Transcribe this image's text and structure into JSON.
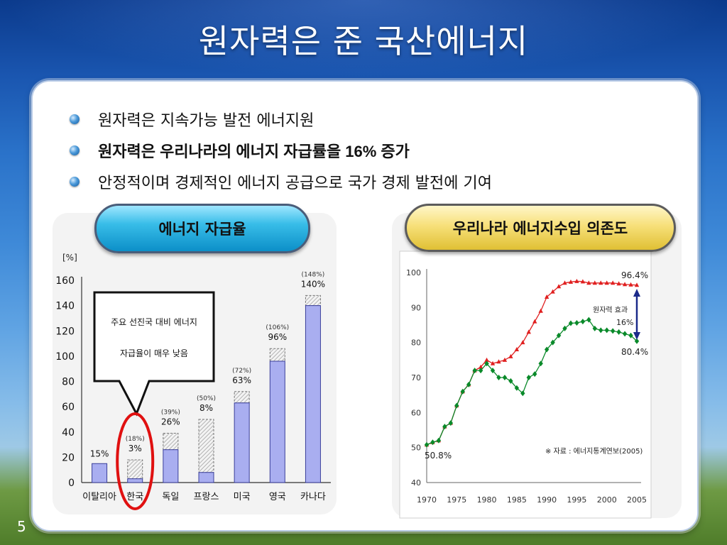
{
  "slide": {
    "title": "원자력은 준 국산에너지",
    "number": "5",
    "bullets": [
      {
        "text": "원자력은 지속가능 발전 에너지원",
        "bold": false
      },
      {
        "text": "원자력은 우리나라의 에너지 자급률을 16% 증가",
        "bold": true
      },
      {
        "text": "안정적이며 경제적인 에너지 공급으로 국가 경제 발전에 기여",
        "bold": false
      }
    ],
    "left_pill": "에너지 자급율",
    "right_pill": "우리나라 에너지수입 의존도"
  },
  "colors": {
    "title_bg_top": "#0b3a8c",
    "bar_fill": "#a9aef0",
    "bar_stroke": "#3a3f9a",
    "highlight_circle": "#e01010",
    "line_red": "#e02020",
    "line_green": "#0a8a2a"
  },
  "chart_data": [
    {
      "type": "bar",
      "unit_label": "[%]",
      "categories": [
        "이탈리아",
        "한국",
        "독일",
        "프랑스",
        "미국",
        "영국",
        "카나다"
      ],
      "values": [
        15,
        3,
        26,
        8,
        63,
        96,
        140
      ],
      "value_labels": [
        "15%",
        "3%",
        "26%",
        "8%",
        "63%",
        "96%",
        "140%"
      ],
      "totals_with_nuclear": [
        null,
        18,
        39,
        50,
        72,
        106,
        148
      ],
      "totals_labels": [
        "",
        "(18%)",
        "(39%)",
        "(50%)",
        "(72%)",
        "(106%)",
        "(148%)"
      ],
      "yticks": [
        0,
        20,
        40,
        60,
        80,
        100,
        120,
        140,
        160
      ],
      "ylim": [
        0,
        160
      ],
      "callout": [
        "주요 선진국 대비 에너지",
        "자급율이 매우 낮음"
      ],
      "highlight_category": "한국"
    },
    {
      "type": "line",
      "x_ticks": [
        1970,
        1975,
        1980,
        1985,
        1990,
        1995,
        2000,
        2005
      ],
      "y_ticks": [
        40,
        50,
        60,
        70,
        80,
        90,
        100
      ],
      "xlim": [
        1970,
        2005
      ],
      "ylim": [
        40,
        100
      ],
      "series": [
        {
          "marker": "triangle",
          "x": [
            1970,
            1971,
            1972,
            1973,
            1974,
            1975,
            1976,
            1977,
            1978,
            1979,
            1980,
            1981,
            1982,
            1983,
            1984,
            1985,
            1986,
            1987,
            1988,
            1989,
            1990,
            1991,
            1992,
            1993,
            1994,
            1995,
            1996,
            1997,
            1998,
            1999,
            2000,
            2001,
            2002,
            2003,
            2004,
            2005
          ],
          "values": [
            50.8,
            51.5,
            52,
            56,
            57,
            62,
            66,
            68,
            72,
            73,
            75,
            74,
            74.5,
            75,
            76,
            78,
            80,
            83,
            86,
            89,
            93,
            94.5,
            96,
            97,
            97.3,
            97.5,
            97.4,
            97,
            97,
            97,
            97,
            97,
            96.8,
            96.6,
            96.5,
            96.4
          ]
        },
        {
          "marker": "diamond",
          "x": [
            1970,
            1971,
            1972,
            1973,
            1974,
            1975,
            1976,
            1977,
            1978,
            1979,
            1980,
            1981,
            1982,
            1983,
            1984,
            1985,
            1986,
            1987,
            1988,
            1989,
            1990,
            1991,
            1992,
            1993,
            1994,
            1995,
            1996,
            1997,
            1998,
            1999,
            2000,
            2001,
            2002,
            2003,
            2004,
            2005
          ],
          "values": [
            50.8,
            51.5,
            52,
            56,
            57,
            62,
            66,
            68,
            72,
            72,
            74,
            72,
            70,
            70,
            69,
            67,
            65.5,
            70,
            71,
            74,
            78,
            80,
            82,
            84,
            85.5,
            85.6,
            86,
            86.5,
            84,
            83.5,
            83.5,
            83.3,
            83,
            82.5,
            82,
            80.4
          ]
        }
      ],
      "annotations": {
        "start": "50.8%",
        "top_end": "96.4%",
        "bottom_end": "80.4%",
        "effect_label": "원자력 효과",
        "effect_value": "16%",
        "source": "※ 자료 : 에너지통계연보(2005)"
      }
    }
  ]
}
